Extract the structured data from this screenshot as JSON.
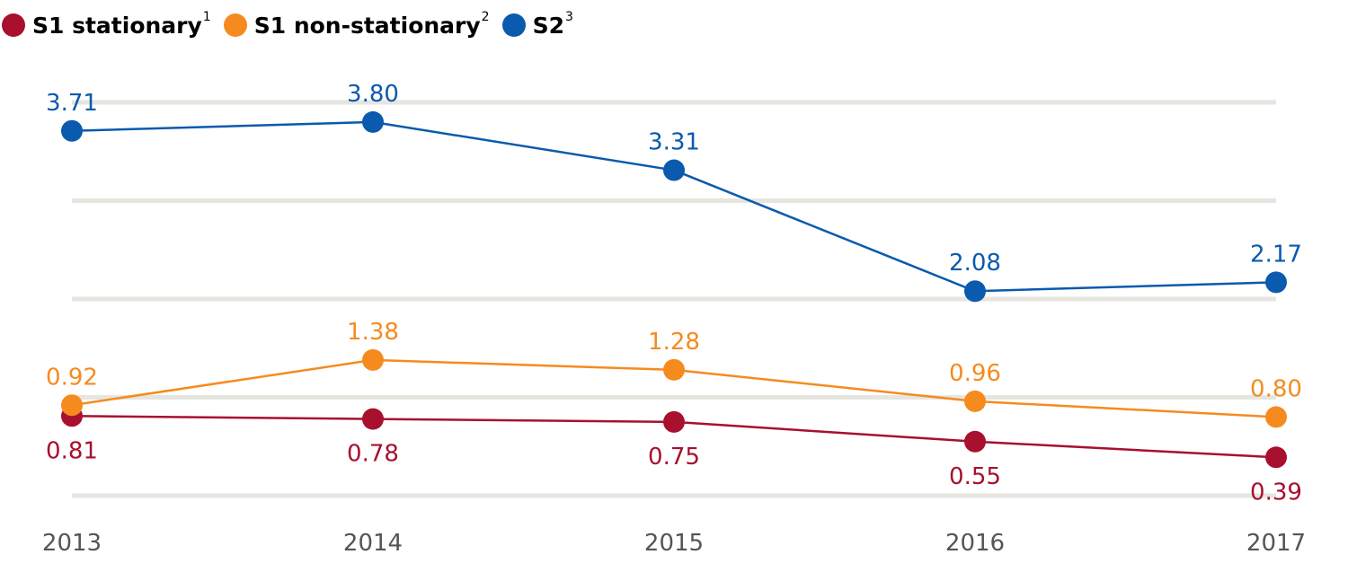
{
  "colors": {
    "stationary": "#a8102e",
    "non_stationary": "#f58b1f",
    "s2": "#0a5aad",
    "grid": "#e6e5df",
    "axis_text": "#555555"
  },
  "legend": [
    {
      "label": "S1 stationary",
      "sup": "1",
      "color": "#a8102e"
    },
    {
      "label": "S1 non-stationary",
      "sup": "2",
      "color": "#f58b1f"
    },
    {
      "label": "S2",
      "sup": "3",
      "color": "#0a5aad"
    }
  ],
  "chart_data": {
    "type": "line",
    "categories": [
      "2013",
      "2014",
      "2015",
      "2016",
      "2017"
    ],
    "series": [
      {
        "name": "S1 stationary",
        "key": "stationary",
        "values": [
          0.81,
          0.78,
          0.75,
          0.55,
          0.39
        ],
        "labels": [
          "0.81",
          "0.78",
          "0.75",
          "0.55",
          "0.39"
        ],
        "label_position": "below"
      },
      {
        "name": "S1 non-stationary",
        "key": "non_stationary",
        "values": [
          0.92,
          1.38,
          1.28,
          0.96,
          0.8
        ],
        "labels": [
          "0.92",
          "1.38",
          "1.28",
          "0.96",
          "0.80"
        ],
        "label_position": "above"
      },
      {
        "name": "S2",
        "key": "s2",
        "values": [
          3.71,
          3.8,
          3.31,
          2.08,
          2.17
        ],
        "labels": [
          "3.71",
          "3.80",
          "3.31",
          "2.08",
          "2.17"
        ],
        "label_position": "above"
      }
    ],
    "title": "",
    "xlabel": "",
    "ylabel": "",
    "ylim": [
      0,
      4
    ],
    "grid": true,
    "legend_position": "top-left"
  }
}
